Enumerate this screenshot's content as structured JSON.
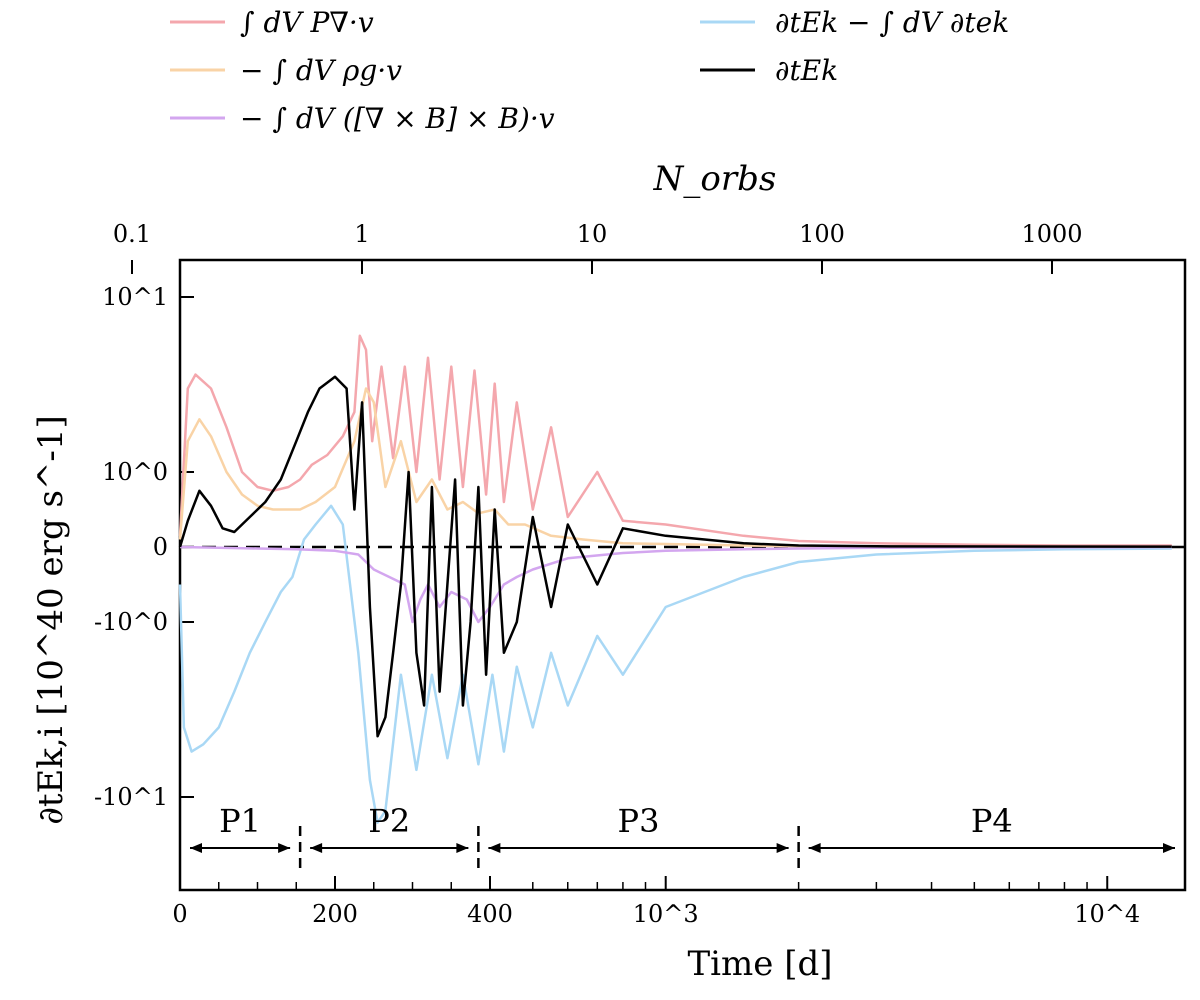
{
  "chart_data": {
    "type": "line",
    "xlabel": "Time    [d]",
    "x2label": "N_orbs",
    "ylabel": "∂tEk,i   [10^40 erg s^-1]",
    "xscale": "symlog (linear 0–400, log above)",
    "yscale": "symlog",
    "xlim": [
      0,
      15000
    ],
    "ylim": [
      -20,
      20
    ],
    "x_ticks": [
      {
        "value": 0,
        "label": "0"
      },
      {
        "value": 200,
        "label": "200"
      },
      {
        "value": 400,
        "label": "400"
      },
      {
        "value": 1000,
        "label": "10^3"
      },
      {
        "value": 10000,
        "label": "10^4"
      }
    ],
    "x2_ticks": [
      {
        "value": 0.1,
        "label": "0.1"
      },
      {
        "value": 1,
        "label": "1"
      },
      {
        "value": 10,
        "label": "10"
      },
      {
        "value": 100,
        "label": "100"
      },
      {
        "value": 1000,
        "label": "1000"
      }
    ],
    "y_ticks": [
      {
        "value": 10,
        "label": "10^1"
      },
      {
        "value": 1,
        "label": "10^0"
      },
      {
        "value": 0,
        "label": "0"
      },
      {
        "value": -1,
        "label": "-10^0"
      },
      {
        "value": -10,
        "label": "-10^1"
      }
    ],
    "legend": {
      "placement": "above-plot",
      "entries": [
        {
          "label": "∫ dV P∇·v",
          "color": "#f4a7ad"
        },
        {
          "label": "− ∫ dV ρg·v",
          "color": "#f9d3a6"
        },
        {
          "label": "− ∫ dV ([∇ × B] × B)·v",
          "color": "#d3a6ef"
        },
        {
          "label": "∂tEk − ∫ dV ∂tek",
          "color": "#a9d8f5"
        },
        {
          "label": "∂tEk",
          "color": "#000000"
        }
      ]
    },
    "phases": [
      {
        "label": "P1",
        "x_start": 0,
        "x_end": 155
      },
      {
        "label": "P2",
        "x_start": 155,
        "x_end": 385
      },
      {
        "label": "P3",
        "x_start": 385,
        "x_end": 2000
      },
      {
        "label": "P4",
        "x_start": 2000,
        "x_end": 15000
      }
    ],
    "series": [
      {
        "name": "∫ dV P∇·v",
        "color": "#f4a7ad",
        "x": [
          0,
          10,
          20,
          40,
          60,
          80,
          100,
          120,
          140,
          155,
          170,
          190,
          210,
          225,
          232,
          240,
          248,
          260,
          275,
          290,
          305,
          320,
          335,
          350,
          365,
          380,
          395,
          410,
          430,
          460,
          500,
          550,
          600,
          700,
          800,
          1000,
          1500,
          2000,
          3000,
          5000,
          8000,
          14000
        ],
        "y": [
          0.15,
          3.0,
          3.6,
          3.0,
          1.8,
          1.0,
          0.8,
          0.75,
          0.8,
          0.9,
          1.1,
          1.25,
          1.6,
          2.2,
          6.0,
          5.0,
          1.5,
          4.0,
          1.2,
          4.0,
          1.0,
          4.5,
          0.9,
          4.0,
          0.8,
          3.8,
          0.7,
          3.2,
          0.6,
          2.5,
          0.5,
          1.8,
          0.4,
          1.0,
          0.35,
          0.3,
          0.15,
          0.08,
          0.05,
          0.03,
          0.02,
          0.02
        ]
      },
      {
        "name": "− ∫ dV ρg·v",
        "color": "#f9d3a6",
        "x": [
          0,
          10,
          25,
          40,
          60,
          80,
          100,
          120,
          140,
          155,
          175,
          200,
          225,
          240,
          250,
          265,
          285,
          305,
          325,
          345,
          365,
          385,
          410,
          440,
          480,
          550,
          650,
          800,
          1000,
          1500,
          2000,
          4000,
          14000
        ],
        "y": [
          0.1,
          1.5,
          2.0,
          1.6,
          1.0,
          0.7,
          0.55,
          0.5,
          0.5,
          0.5,
          0.6,
          0.8,
          1.5,
          3.0,
          2.5,
          0.8,
          1.5,
          0.6,
          0.9,
          0.5,
          0.6,
          0.45,
          0.5,
          0.3,
          0.3,
          0.15,
          0.1,
          0.05,
          0.04,
          0.02,
          0.01,
          0.005,
          0.003
        ]
      },
      {
        "name": "− ∫ dV ([∇ × B] × B)·v",
        "color": "#d3a6ef",
        "x": [
          0,
          50,
          100,
          150,
          200,
          230,
          250,
          270,
          290,
          300,
          310,
          320,
          335,
          350,
          370,
          385,
          400,
          430,
          460,
          500,
          600,
          800,
          1000,
          1500,
          2000,
          3000,
          5000,
          10000,
          14000
        ],
        "y": [
          0,
          -0.01,
          -0.02,
          -0.03,
          -0.05,
          -0.1,
          -0.3,
          -0.4,
          -0.5,
          -1.0,
          -0.7,
          -0.5,
          -0.8,
          -0.6,
          -0.7,
          -1.0,
          -0.8,
          -0.5,
          -0.4,
          -0.3,
          -0.15,
          -0.08,
          -0.05,
          -0.03,
          -0.02,
          -0.01,
          -0.005,
          -0.003,
          0
        ]
      },
      {
        "name": "∂tEk − ∫ dV ∂tek",
        "color": "#a9d8f5",
        "x": [
          0,
          5,
          15,
          30,
          50,
          70,
          90,
          110,
          130,
          145,
          160,
          175,
          195,
          210,
          230,
          245,
          255,
          265,
          285,
          305,
          325,
          345,
          365,
          385,
          405,
          430,
          460,
          500,
          550,
          600,
          700,
          800,
          1000,
          1500,
          2000,
          3000,
          5000,
          8000,
          14000
        ],
        "y": [
          -0.5,
          -4.0,
          -5.5,
          -5.0,
          -4.0,
          -2.5,
          -1.5,
          -1.0,
          -0.6,
          -0.4,
          0.1,
          0.3,
          0.55,
          0.3,
          -1.5,
          -8.0,
          -14.0,
          -12.0,
          -2.0,
          -7.0,
          -2.0,
          -6.0,
          -2.0,
          -6.5,
          -2.0,
          -5.5,
          -1.8,
          -4.0,
          -1.5,
          -3.0,
          -1.2,
          -2.0,
          -0.8,
          -0.4,
          -0.2,
          -0.1,
          -0.05,
          -0.03,
          -0.02
        ]
      },
      {
        "name": "∂tEk",
        "color": "#000000",
        "x": [
          0,
          10,
          25,
          40,
          55,
          70,
          90,
          110,
          130,
          150,
          165,
          180,
          200,
          215,
          225,
          235,
          245,
          255,
          265,
          275,
          285,
          295,
          305,
          315,
          325,
          335,
          345,
          355,
          365,
          375,
          385,
          395,
          410,
          430,
          460,
          500,
          550,
          600,
          700,
          800,
          1000,
          1500,
          2000,
          3000,
          14000
        ],
        "y": [
          0,
          0.35,
          0.75,
          0.55,
          0.25,
          0.2,
          0.4,
          0.6,
          0.9,
          1.5,
          2.2,
          3.0,
          3.5,
          3.0,
          0.5,
          2.5,
          -0.8,
          -4.5,
          -3.5,
          -1.5,
          -0.5,
          1.0,
          -1.5,
          -3.0,
          0.8,
          -2.5,
          -0.5,
          0.9,
          -3.0,
          -1.0,
          0.8,
          -2.0,
          0.5,
          -1.5,
          -1.0,
          0.4,
          -0.8,
          0.3,
          -0.5,
          0.25,
          0.15,
          0.05,
          0.02,
          0.01,
          0.005
        ]
      }
    ]
  }
}
